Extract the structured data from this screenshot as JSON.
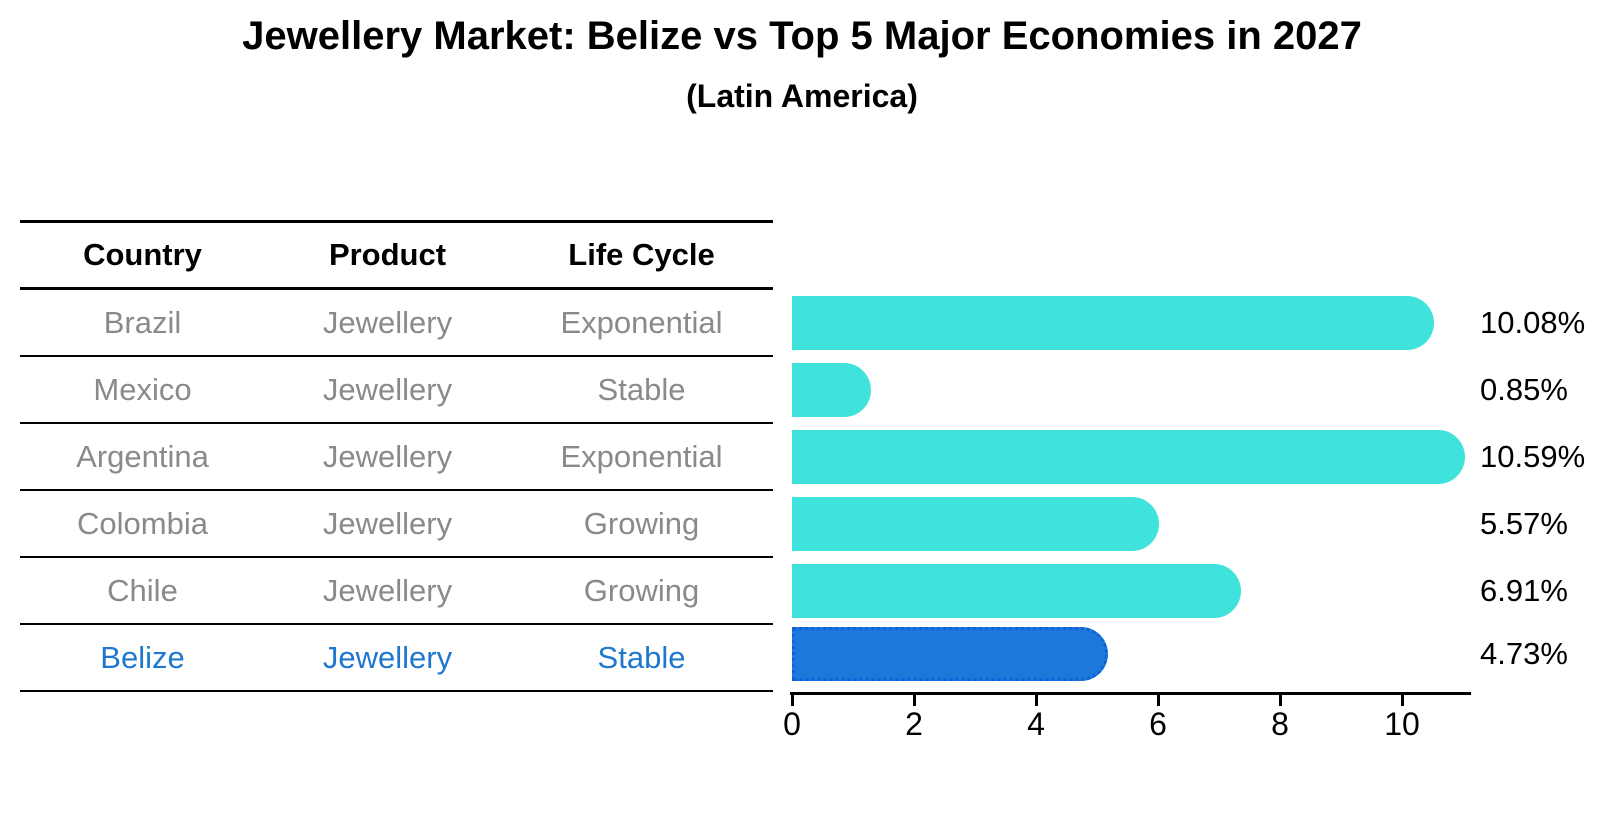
{
  "title": "Jewellery Market: Belize vs Top 5 Major Economies in 2027",
  "subtitle": "(Latin America)",
  "table": {
    "headers": [
      "Country",
      "Product",
      "Life Cycle"
    ],
    "rows": [
      {
        "country": "Brazil",
        "product": "Jewellery",
        "life_cycle": "Exponential",
        "highlight": false
      },
      {
        "country": "Mexico",
        "product": "Jewellery",
        "life_cycle": "Stable",
        "highlight": false
      },
      {
        "country": "Argentina",
        "product": "Jewellery",
        "life_cycle": "Exponential",
        "highlight": false
      },
      {
        "country": "Colombia",
        "product": "Jewellery",
        "life_cycle": "Growing",
        "highlight": false
      },
      {
        "country": "Chile",
        "product": "Jewellery",
        "life_cycle": "Growing",
        "highlight": false
      },
      {
        "country": "Belize",
        "product": "Jewellery",
        "life_cycle": "Stable",
        "highlight": true
      }
    ]
  },
  "chart_data": {
    "type": "bar",
    "orientation": "horizontal",
    "title": "Jewellery Market: Belize vs Top 5 Major Economies in 2027",
    "subtitle": "(Latin America)",
    "categories": [
      "Brazil",
      "Mexico",
      "Argentina",
      "Colombia",
      "Chile",
      "Belize"
    ],
    "values": [
      10.08,
      0.85,
      10.59,
      5.57,
      6.91,
      4.73
    ],
    "value_labels": [
      "10.08%",
      "0.85%",
      "10.59%",
      "5.57%",
      "6.91%",
      "4.73%"
    ],
    "x_ticks": [
      "0",
      "2",
      "4",
      "6",
      "8",
      "10"
    ],
    "xlim": [
      0,
      11.15
    ],
    "grid": false,
    "legend": false,
    "bar_color": "#3fe3dc",
    "highlight_index": 5,
    "highlight_color": "#1e78db",
    "highlight_border_color": "#0d63d6",
    "muted_text_color": "#8a8a8a",
    "highlight_text_color": "#1f78cd"
  }
}
